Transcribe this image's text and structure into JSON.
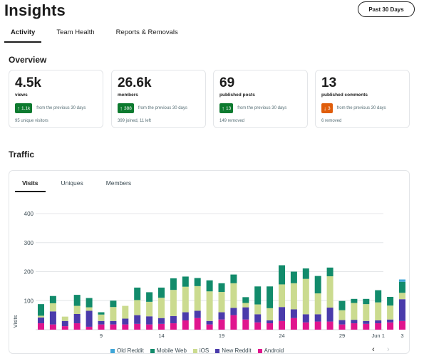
{
  "page": {
    "title": "Insights",
    "range_button": "Past 30 Days"
  },
  "tabs": [
    {
      "label": "Activity",
      "active": true
    },
    {
      "label": "Team Health",
      "active": false
    },
    {
      "label": "Reports & Removals",
      "active": false
    }
  ],
  "overview": {
    "title": "Overview",
    "change_text": "from the previous 30 days",
    "cards": [
      {
        "value": "4.5k",
        "label": "views",
        "badge": "1.1k",
        "direction": "up",
        "sub": "95 unique visitors"
      },
      {
        "value": "26.6k",
        "label": "members",
        "badge": "388",
        "direction": "up",
        "sub": "399 joined, 11 left"
      },
      {
        "value": "69",
        "label": "published posts",
        "badge": "13",
        "direction": "up",
        "sub": "149 removed"
      },
      {
        "value": "13",
        "label": "published comments",
        "badge": "3",
        "direction": "down",
        "sub": "6 removed"
      }
    ]
  },
  "traffic": {
    "title": "Traffic",
    "tabs": [
      {
        "label": "Visits",
        "active": true
      },
      {
        "label": "Uniques",
        "active": false
      },
      {
        "label": "Members",
        "active": false
      }
    ],
    "prev_icon": "chevron-left-icon",
    "next_icon": "chevron-right-icon"
  },
  "chart_data": {
    "type": "bar",
    "stacked": true,
    "ylabel": "Visits",
    "ylim": [
      0,
      400
    ],
    "yticks": [
      100,
      200,
      300,
      400
    ],
    "grid": true,
    "legend_position": "bottom",
    "xtick_labels": [
      {
        "index": 5,
        "label": "9"
      },
      {
        "index": 10,
        "label": "14"
      },
      {
        "index": 15,
        "label": "19"
      },
      {
        "index": 20,
        "label": "24"
      },
      {
        "index": 25,
        "label": "29"
      },
      {
        "index": 28,
        "label": "Jun 1"
      },
      {
        "index": 30,
        "label": "3"
      }
    ],
    "series": [
      {
        "name": "Android",
        "color": "#e0158e",
        "values": [
          22,
          18,
          12,
          22,
          10,
          18,
          18,
          18,
          20,
          18,
          20,
          22,
          32,
          40,
          18,
          35,
          50,
          35,
          25,
          22,
          30,
          40,
          25,
          28,
          28,
          18,
          22,
          20,
          22,
          25,
          30
        ]
      },
      {
        "name": "New Reddit",
        "color": "#4a3bab",
        "values": [
          20,
          45,
          18,
          32,
          55,
          12,
          12,
          20,
          30,
          28,
          20,
          25,
          28,
          25,
          12,
          25,
          25,
          42,
          28,
          10,
          48,
          30,
          28,
          25,
          48,
          15,
          12,
          10,
          10,
          10,
          75
        ]
      },
      {
        "name": "iOS",
        "color": "#cbdb8f",
        "values": [
          6,
          28,
          15,
          28,
          12,
          22,
          48,
          44,
          52,
          50,
          70,
          90,
          88,
          85,
          102,
          70,
          85,
          15,
          34,
          42,
          78,
          90,
          122,
          72,
          108,
          34,
          58,
          58,
          62,
          48,
          22
        ]
      },
      {
        "name": "Mobile Web",
        "color": "#128b6b",
        "values": [
          40,
          25,
          0,
          38,
          32,
          8,
          22,
          0,
          43,
          33,
          35,
          40,
          35,
          28,
          38,
          30,
          30,
          20,
          62,
          75,
          66,
          40,
          36,
          60,
          30,
          32,
          14,
          18,
          42,
          30,
          38
        ]
      },
      {
        "name": "Old Reddit",
        "color": "#3fa6d8",
        "values": [
          0,
          0,
          0,
          0,
          0,
          0,
          0,
          0,
          0,
          0,
          0,
          0,
          0,
          0,
          0,
          0,
          0,
          0,
          0,
          0,
          0,
          0,
          0,
          0,
          0,
          0,
          0,
          0,
          0,
          0,
          8
        ]
      }
    ]
  }
}
